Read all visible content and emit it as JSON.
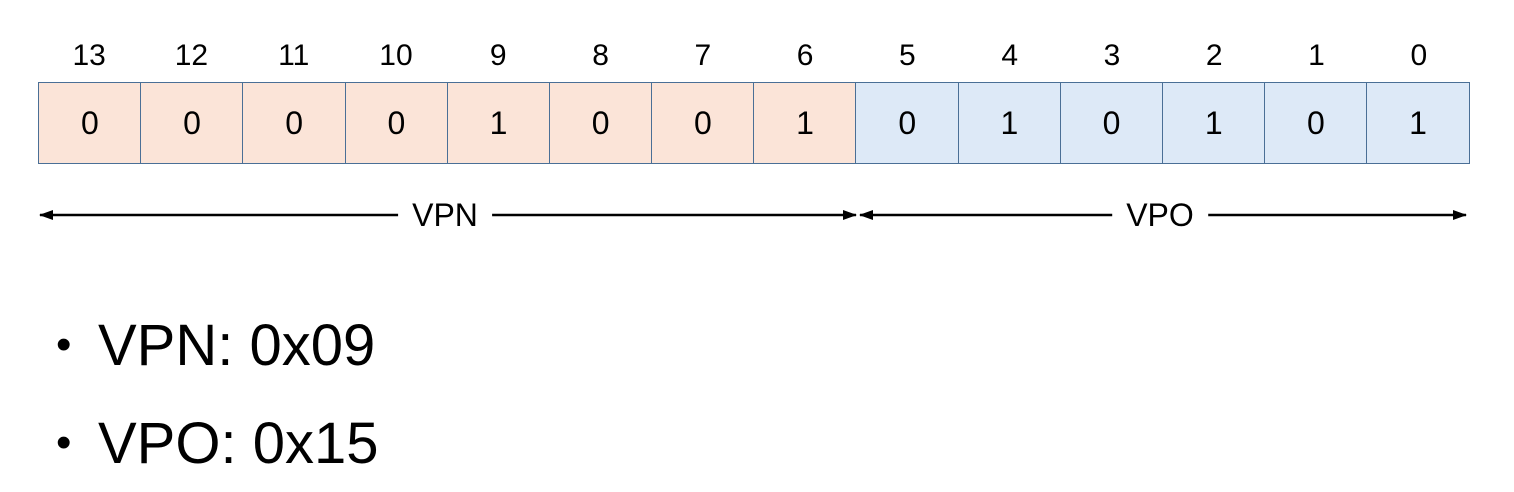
{
  "bit_indices": [
    "13",
    "12",
    "11",
    "10",
    "9",
    "8",
    "7",
    "6",
    "5",
    "4",
    "3",
    "2",
    "1",
    "0"
  ],
  "bits": [
    {
      "value": "0",
      "group": "vpn"
    },
    {
      "value": "0",
      "group": "vpn"
    },
    {
      "value": "0",
      "group": "vpn"
    },
    {
      "value": "0",
      "group": "vpn"
    },
    {
      "value": "1",
      "group": "vpn"
    },
    {
      "value": "0",
      "group": "vpn"
    },
    {
      "value": "0",
      "group": "vpn"
    },
    {
      "value": "1",
      "group": "vpn"
    },
    {
      "value": "0",
      "group": "vpo"
    },
    {
      "value": "1",
      "group": "vpo"
    },
    {
      "value": "0",
      "group": "vpo"
    },
    {
      "value": "1",
      "group": "vpo"
    },
    {
      "value": "0",
      "group": "vpo"
    },
    {
      "value": "1",
      "group": "vpo"
    }
  ],
  "ranges": {
    "vpn_label": "VPN",
    "vpo_label": "VPO"
  },
  "bullets": [
    {
      "dot": "•",
      "text": "VPN: 0x09"
    },
    {
      "dot": "•",
      "text": "VPO: 0x15"
    }
  ],
  "colors": {
    "vpn_fill": "#fbe4d8",
    "vpo_fill": "#dde9f7",
    "border": "#4a6f96"
  }
}
